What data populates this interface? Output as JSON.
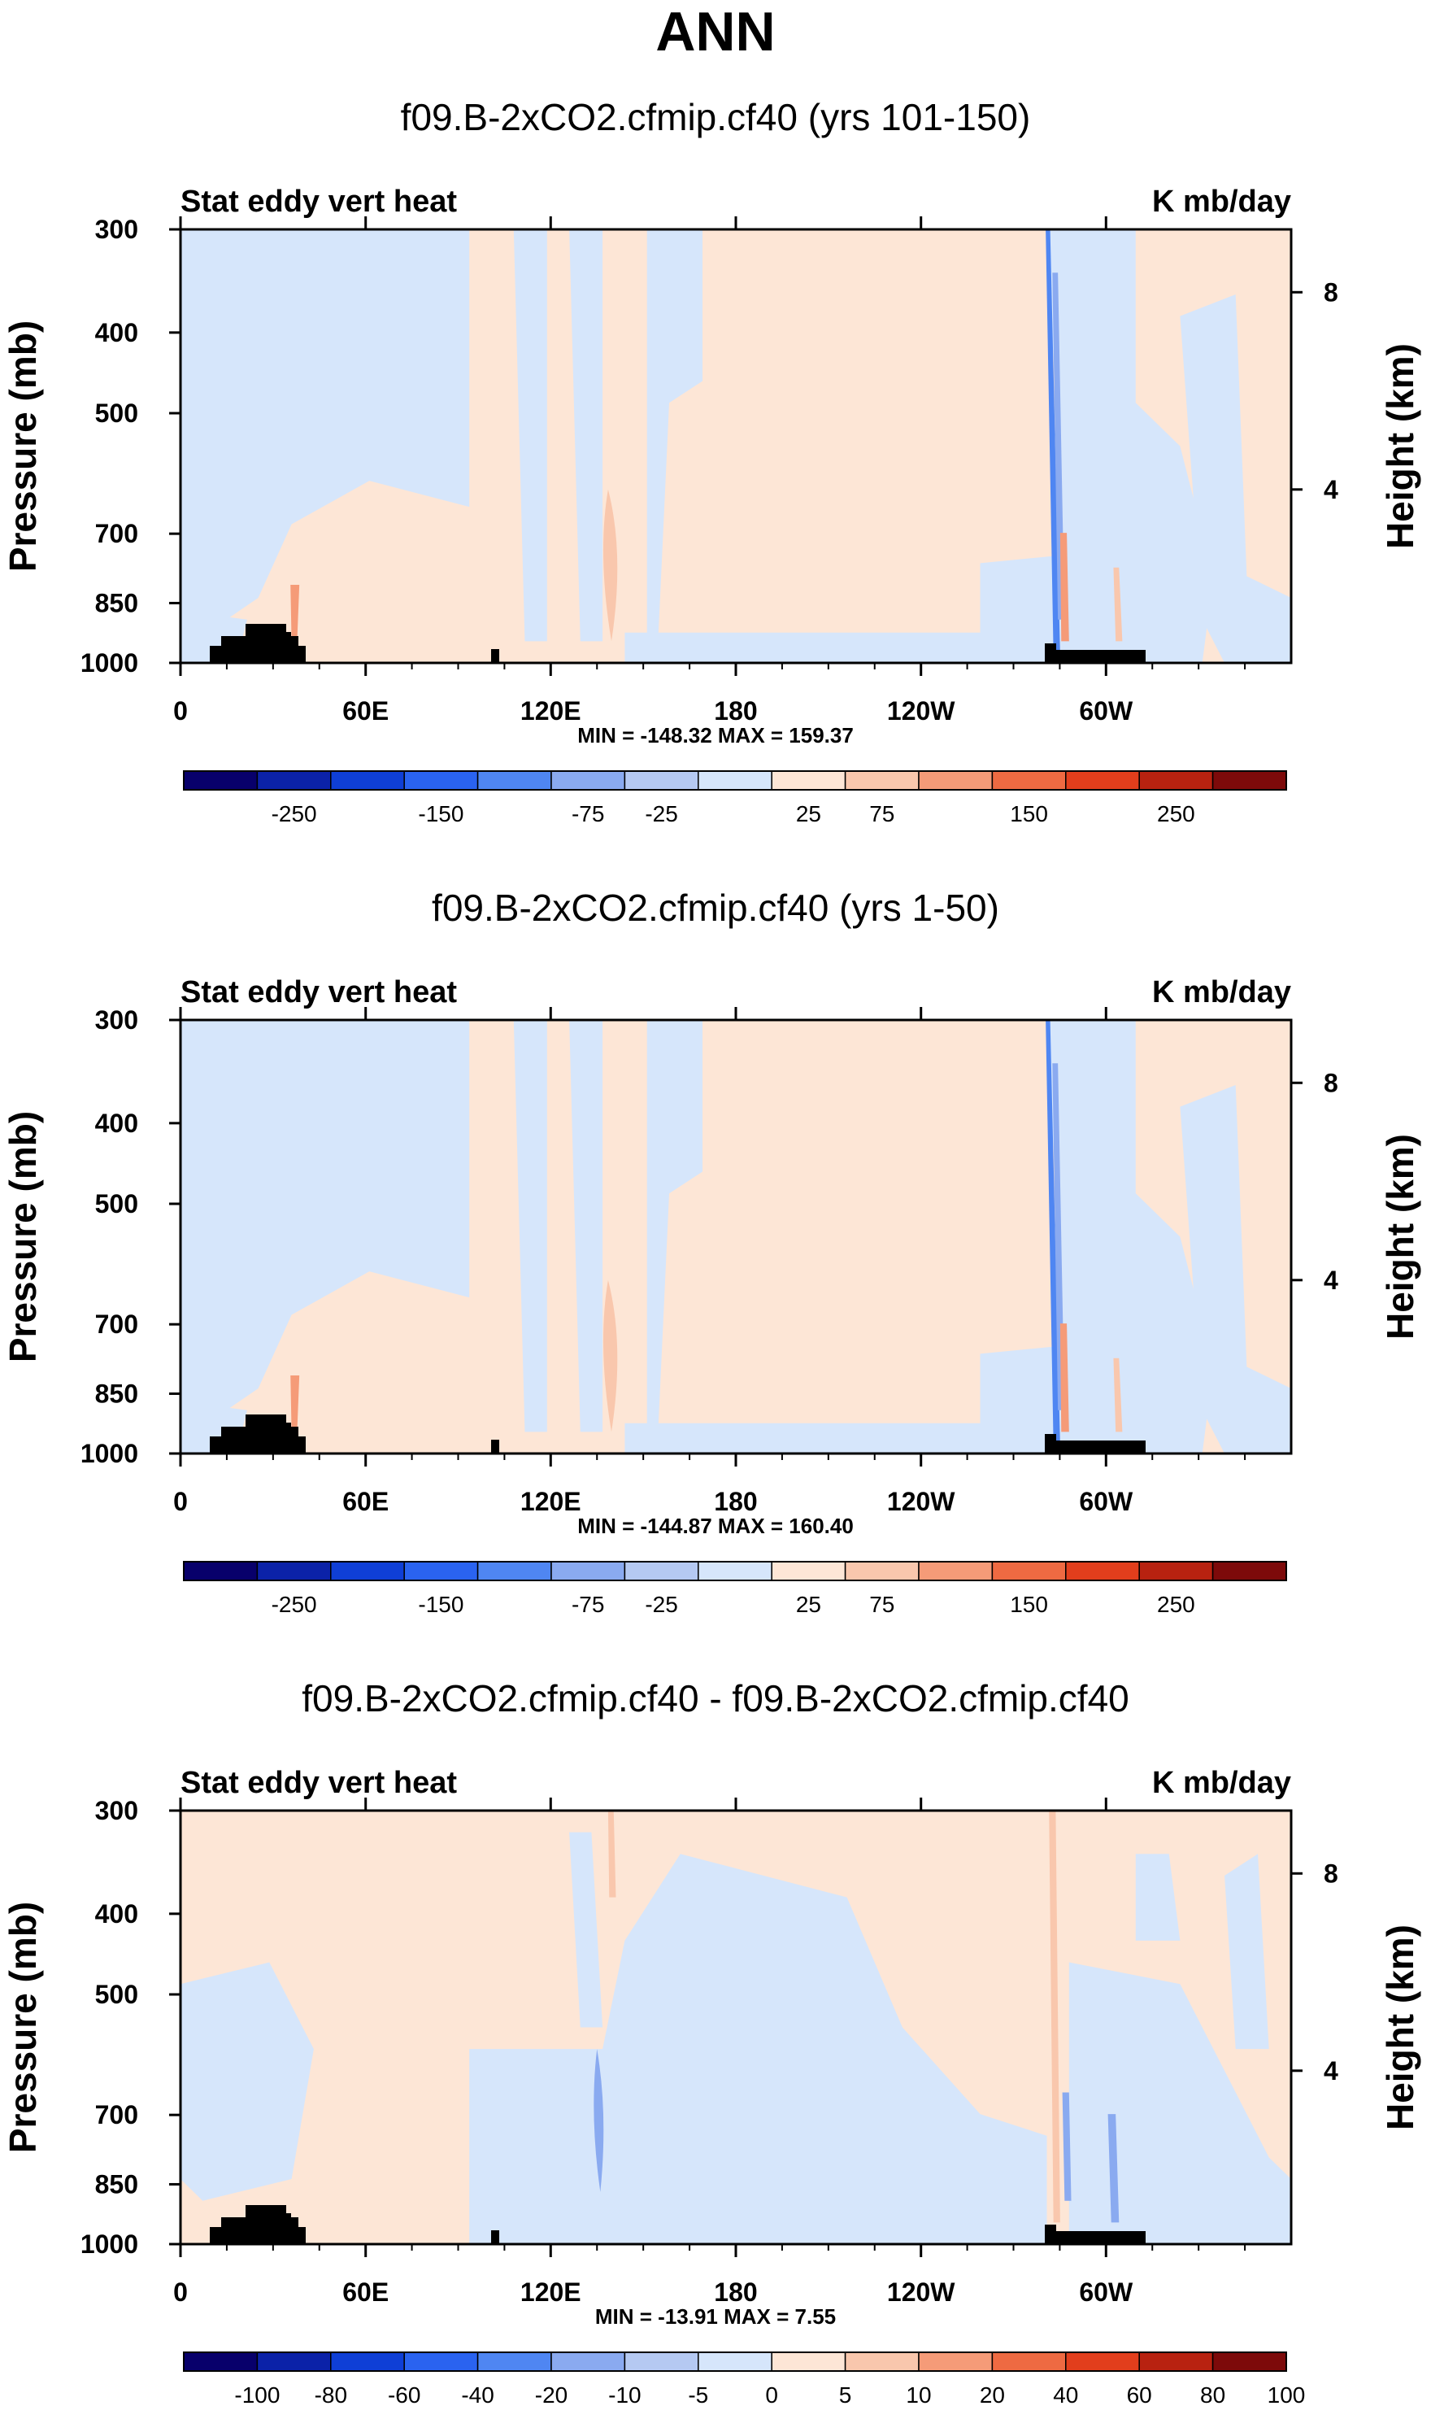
{
  "figure_title": "ANN",
  "chart_data": [
    {
      "type": "heatmap",
      "title": "f09.B-2xCO2.cfmip.cf40 (yrs 101-150)",
      "left_label": "Stat eddy vert heat",
      "right_label": "K mb/day",
      "ylabel": "Pressure (mb)",
      "ylabel_right": "Height (km)",
      "x_ticks": [
        "0",
        "60E",
        "120E",
        "180",
        "120W",
        "60W"
      ],
      "y_ticks": [
        "300",
        "400",
        "500",
        "700",
        "850",
        "1000"
      ],
      "y_ticks_right": [
        "8",
        "4"
      ],
      "minmax": "MIN = -148.32  MAX = 159.37",
      "colorbar_labels": [
        "-250",
        "-150",
        "-75",
        "-25",
        "25",
        "75",
        "150",
        "250"
      ],
      "colorbar_levels": [
        -250,
        -200,
        -150,
        -100,
        -75,
        -50,
        -25,
        0,
        25,
        50,
        75,
        100,
        150,
        200,
        250
      ],
      "min": -148.32,
      "max": 159.37
    },
    {
      "type": "heatmap",
      "title": "f09.B-2xCO2.cfmip.cf40 (yrs 1-50)",
      "left_label": "Stat eddy vert heat",
      "right_label": "K mb/day",
      "ylabel": "Pressure (mb)",
      "ylabel_right": "Height (km)",
      "x_ticks": [
        "0",
        "60E",
        "120E",
        "180",
        "120W",
        "60W"
      ],
      "y_ticks": [
        "300",
        "400",
        "500",
        "700",
        "850",
        "1000"
      ],
      "y_ticks_right": [
        "8",
        "4"
      ],
      "minmax": "MIN = -144.87  MAX = 160.40",
      "colorbar_labels": [
        "-250",
        "-150",
        "-75",
        "-25",
        "25",
        "75",
        "150",
        "250"
      ],
      "colorbar_levels": [
        -250,
        -200,
        -150,
        -100,
        -75,
        -50,
        -25,
        0,
        25,
        50,
        75,
        100,
        150,
        200,
        250
      ],
      "min": -144.87,
      "max": 160.4
    },
    {
      "type": "heatmap",
      "title": "f09.B-2xCO2.cfmip.cf40 - f09.B-2xCO2.cfmip.cf40",
      "left_label": "Stat eddy vert heat",
      "right_label": "K mb/day",
      "ylabel": "Pressure (mb)",
      "ylabel_right": "Height (km)",
      "x_ticks": [
        "0",
        "60E",
        "120E",
        "180",
        "120W",
        "60W"
      ],
      "y_ticks": [
        "300",
        "400",
        "500",
        "700",
        "850",
        "1000"
      ],
      "y_ticks_right": [
        "8",
        "4"
      ],
      "minmax": "MIN = -13.91  MAX =  7.55",
      "colorbar_labels": [
        "-100",
        "-80",
        "-60",
        "-40",
        "-20",
        "-10",
        "-5",
        "0",
        "5",
        "10",
        "20",
        "40",
        "60",
        "80",
        "100"
      ],
      "colorbar_levels": [
        -100,
        -80,
        -60,
        -40,
        -20,
        -10,
        -5,
        0,
        5,
        10,
        20,
        40,
        60,
        80,
        100
      ],
      "min": -13.91,
      "max": 7.55
    }
  ],
  "colors": {
    "palette": [
      "#08006b",
      "#0b22a8",
      "#0f3fd6",
      "#2a63f0",
      "#4f86f2",
      "#8aaaf0",
      "#b5c9f2",
      "#d6e6fb",
      "#fde6d6",
      "#f9c7ad",
      "#f59b78",
      "#ee6a42",
      "#e23e1c",
      "#b82210",
      "#7d0a0a"
    ],
    "neg_shade": "#d6e6fb",
    "pos_shade": "#fde6d6",
    "topography": "#000000"
  }
}
